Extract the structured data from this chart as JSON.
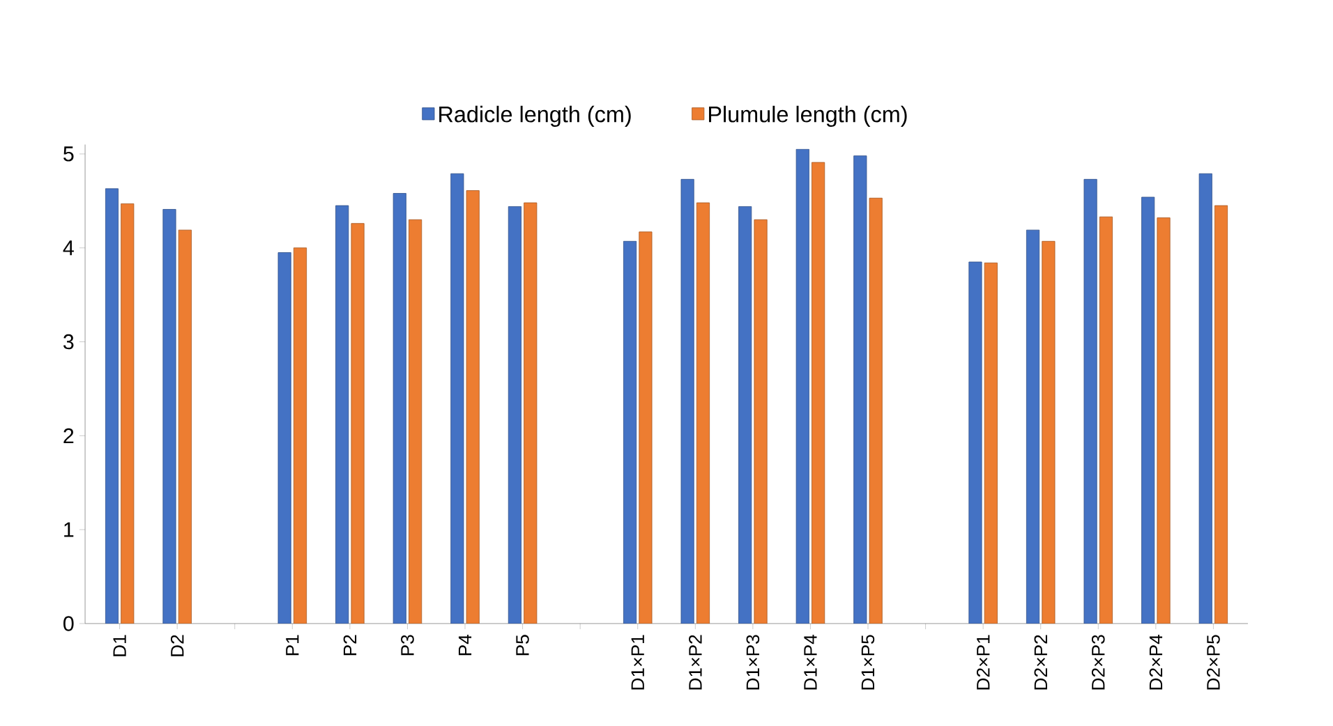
{
  "chart_data": {
    "type": "bar",
    "categories": [
      "D1",
      "D2",
      null,
      "P1",
      "P2",
      "P3",
      "P4",
      "P5",
      null,
      "D1×P1",
      "D1×P2",
      "D1×P3",
      "D1×P4",
      "D1×P5",
      null,
      "D2×P1",
      "D2×P2",
      "D2×P3",
      "D2×P4",
      "D2×P5"
    ],
    "series": [
      {
        "name": "Radicle length (cm)",
        "color": "#4472c4",
        "values": [
          4.63,
          4.41,
          null,
          3.95,
          4.45,
          4.58,
          4.79,
          4.44,
          null,
          4.07,
          4.73,
          4.44,
          5.05,
          4.98,
          null,
          3.85,
          4.19,
          4.73,
          4.54,
          4.79
        ]
      },
      {
        "name": "Plumule length (cm)",
        "color": "#ed7d31",
        "values": [
          4.47,
          4.19,
          null,
          4.0,
          4.26,
          4.3,
          4.61,
          4.48,
          null,
          4.17,
          4.48,
          4.3,
          4.91,
          4.53,
          null,
          3.84,
          4.07,
          4.33,
          4.32,
          4.45
        ]
      }
    ],
    "ylim": [
      0,
      5.1
    ],
    "yticks": [
      0,
      1,
      2,
      3,
      4,
      5
    ],
    "grid": false,
    "legend": "top"
  }
}
